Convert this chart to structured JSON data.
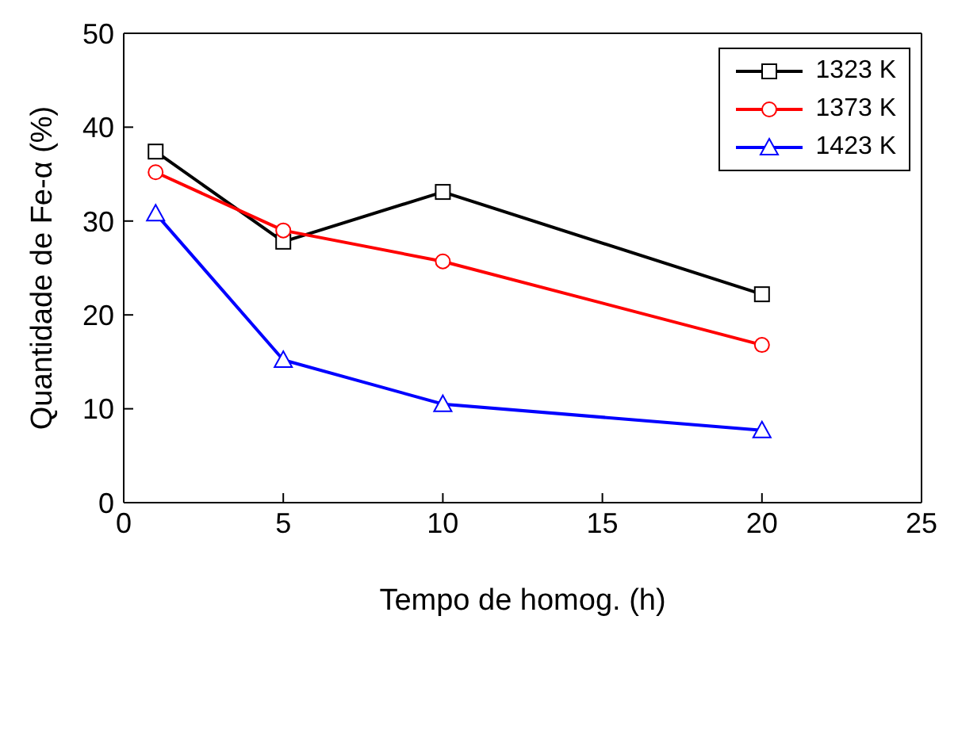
{
  "chart_data": {
    "type": "line",
    "xlabel": "Tempo de homog. (h)",
    "ylabel": "Quantidade de Fe-α (%)",
    "x": [
      1,
      5,
      10,
      20
    ],
    "series": [
      {
        "name": "1323 K",
        "color": "#000000",
        "marker": "square",
        "values": [
          37.4,
          27.8,
          33.1,
          22.2
        ]
      },
      {
        "name": "1373 K",
        "color": "#ff0000",
        "marker": "circle",
        "values": [
          35.2,
          29.0,
          25.7,
          16.8
        ]
      },
      {
        "name": "1423 K",
        "color": "#0000ff",
        "marker": "triangle",
        "values": [
          30.8,
          15.2,
          10.5,
          7.7
        ]
      }
    ],
    "xlim": [
      0,
      25
    ],
    "xticks": [
      0,
      5,
      10,
      15,
      20,
      25
    ],
    "ylim": [
      0,
      50
    ],
    "yticks": [
      0,
      10,
      20,
      30,
      40,
      50
    ],
    "legend": "top right"
  }
}
